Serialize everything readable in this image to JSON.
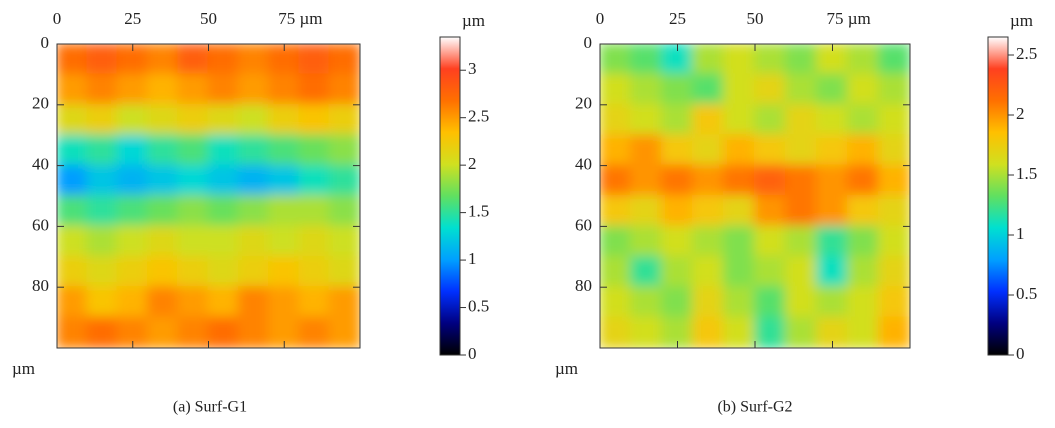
{
  "chart_data": [
    {
      "type": "heatmap",
      "caption": "(a) Surf-G1",
      "xlim": [
        0,
        100
      ],
      "ylim": [
        0,
        100
      ],
      "xticks": [
        0,
        25,
        50,
        {
          "value": 75,
          "label": "75 µm"
        }
      ],
      "yticks": [
        0,
        20,
        40,
        60,
        80
      ],
      "y_unit": "µm",
      "colorbar": {
        "label": "µm",
        "lim": [
          0,
          3.35
        ],
        "ticks": [
          0,
          0.5,
          1,
          1.5,
          2,
          2.5,
          3
        ]
      },
      "colorscale": [
        "#000000",
        "#000080",
        "#0030ff",
        "#00a0ff",
        "#00e0d0",
        "#60e060",
        "#d0e020",
        "#ffc000",
        "#ff7000",
        "#ff4020",
        "#ffffff"
      ],
      "z": [
        [
          2.7,
          2.8,
          2.7,
          2.6,
          2.8,
          2.7,
          2.6,
          2.7,
          2.8,
          2.7
        ],
        [
          2.5,
          2.6,
          2.5,
          2.4,
          2.5,
          2.6,
          2.5,
          2.6,
          2.7,
          2.6
        ],
        [
          2.1,
          2.2,
          2.0,
          2.1,
          2.2,
          2.1,
          2.0,
          2.2,
          2.3,
          2.2
        ],
        [
          1.4,
          1.5,
          1.3,
          1.5,
          1.6,
          1.4,
          1.5,
          1.6,
          1.7,
          1.8
        ],
        [
          1.0,
          1.2,
          1.1,
          1.2,
          1.3,
          1.2,
          1.1,
          1.2,
          1.4,
          1.5
        ],
        [
          1.6,
          1.5,
          1.6,
          1.7,
          1.8,
          1.7,
          1.8,
          1.9,
          1.9,
          1.8
        ],
        [
          2.0,
          1.9,
          2.0,
          2.1,
          2.0,
          2.0,
          2.1,
          2.0,
          2.1,
          2.0
        ],
        [
          2.2,
          2.1,
          2.2,
          2.3,
          2.2,
          2.1,
          2.2,
          2.3,
          2.2,
          2.1
        ],
        [
          2.5,
          2.3,
          2.4,
          2.6,
          2.5,
          2.4,
          2.6,
          2.5,
          2.4,
          2.5
        ],
        [
          2.6,
          2.7,
          2.6,
          2.5,
          2.6,
          2.7,
          2.6,
          2.5,
          2.6,
          2.5
        ]
      ]
    },
    {
      "type": "heatmap",
      "caption": "(b) Surf-G2",
      "xlim": [
        0,
        100
      ],
      "ylim": [
        0,
        100
      ],
      "xticks": [
        0,
        25,
        50,
        {
          "value": 75,
          "label": "75 µm"
        }
      ],
      "yticks": [
        0,
        20,
        40,
        60,
        80
      ],
      "y_unit": "µm",
      "colorbar": {
        "label": "µm",
        "lim": [
          0,
          2.65
        ],
        "ticks": [
          0,
          0.5,
          1,
          1.5,
          2,
          2.5
        ]
      },
      "colorscale": [
        "#000000",
        "#000080",
        "#0030ff",
        "#00a0ff",
        "#00e0d0",
        "#60e060",
        "#d0e020",
        "#ffc000",
        "#ff7000",
        "#ff4020",
        "#ffffff"
      ],
      "z": [
        [
          1.4,
          1.3,
          1.1,
          1.5,
          1.6,
          1.5,
          1.4,
          1.6,
          1.5,
          1.3
        ],
        [
          1.6,
          1.5,
          1.4,
          1.3,
          1.6,
          1.7,
          1.5,
          1.4,
          1.6,
          1.5
        ],
        [
          1.7,
          1.6,
          1.5,
          1.8,
          1.6,
          1.5,
          1.7,
          1.6,
          1.5,
          1.6
        ],
        [
          1.9,
          2.0,
          1.8,
          1.7,
          1.9,
          1.8,
          1.7,
          1.8,
          1.9,
          1.7
        ],
        [
          2.1,
          2.0,
          2.1,
          2.0,
          2.1,
          2.2,
          2.1,
          2.0,
          2.1,
          1.9
        ],
        [
          1.8,
          1.7,
          1.9,
          1.8,
          1.7,
          2.0,
          2.1,
          2.0,
          1.8,
          1.7
        ],
        [
          1.4,
          1.5,
          1.6,
          1.5,
          1.4,
          1.6,
          1.5,
          1.2,
          1.4,
          1.6
        ],
        [
          1.5,
          1.2,
          1.5,
          1.6,
          1.4,
          1.5,
          1.6,
          1.1,
          1.5,
          1.7
        ],
        [
          1.6,
          1.5,
          1.4,
          1.7,
          1.5,
          1.3,
          1.6,
          1.5,
          1.6,
          1.8
        ],
        [
          1.7,
          1.6,
          1.5,
          1.8,
          1.6,
          1.2,
          1.5,
          1.7,
          1.6,
          1.9
        ]
      ]
    }
  ]
}
